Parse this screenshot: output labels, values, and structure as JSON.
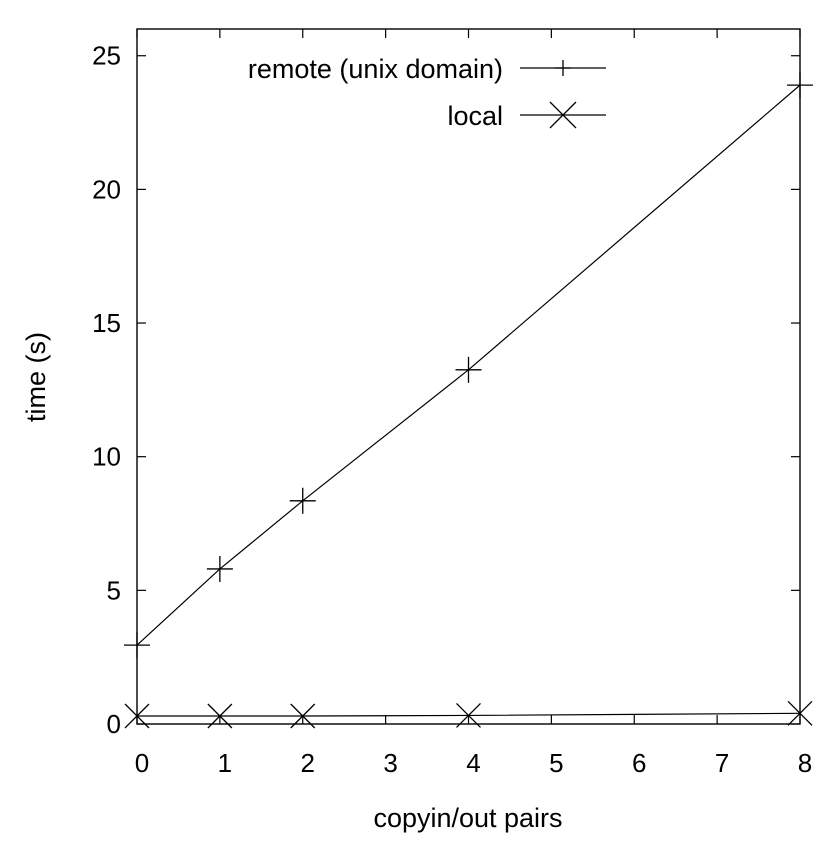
{
  "chart_data": {
    "type": "line",
    "xlabel": "copyin/out pairs",
    "ylabel": "time (s)",
    "xlim": [
      0,
      8
    ],
    "ylim": [
      0,
      26
    ],
    "xticks": [
      0,
      1,
      2,
      3,
      4,
      5,
      6,
      7,
      8
    ],
    "yticks": [
      0,
      5,
      10,
      15,
      20,
      25
    ],
    "grid": false,
    "legend_position": "top-center",
    "series": [
      {
        "name": "remote (unix domain)",
        "marker": "plus",
        "color": "#000000",
        "x": [
          0,
          1,
          2,
          4,
          8
        ],
        "y": [
          2.95,
          5.8,
          8.35,
          13.25,
          23.9
        ]
      },
      {
        "name": "local",
        "marker": "cross",
        "color": "#000000",
        "x": [
          0,
          1,
          2,
          4,
          8
        ],
        "y": [
          0.3,
          0.3,
          0.3,
          0.32,
          0.4
        ]
      }
    ]
  }
}
